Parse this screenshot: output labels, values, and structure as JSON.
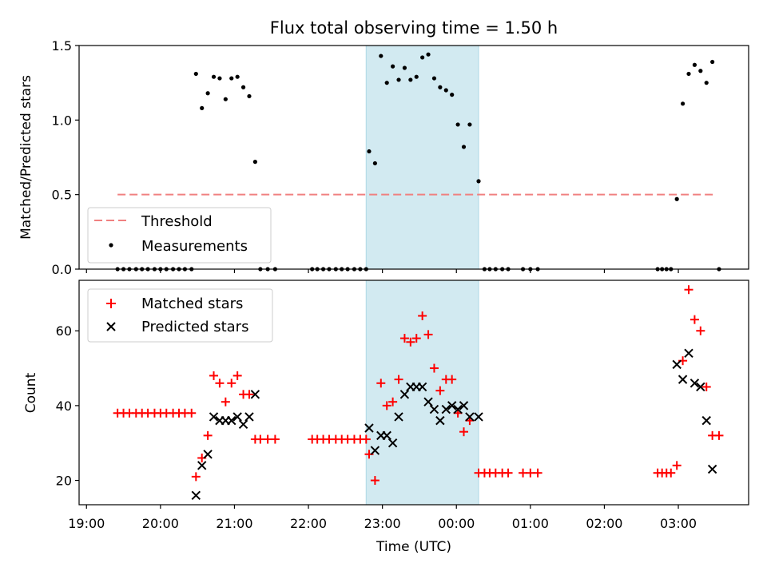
{
  "chart_data": [
    {
      "type": "scatter",
      "title": "Flux total observing time = 1.50 h",
      "ylabel": "Matched/Predicted stars",
      "xlabel": "",
      "ylim": [
        0,
        1.5
      ],
      "yticks": [
        "0.0",
        "0.5",
        "1.0",
        "1.5"
      ],
      "xlim_hours": [
        18.9,
        27.95
      ],
      "highlight_span_hours": [
        22.78,
        24.3
      ],
      "threshold": {
        "name": "Threshold",
        "value": 0.5,
        "x_range_hours": [
          19.42,
          27.5
        ],
        "color": "#f08080"
      },
      "legend_position": "lower-left",
      "series": [
        {
          "name": "Measurements",
          "color": "#000000",
          "points": [
            [
              19.42,
              0
            ],
            [
              19.5,
              0
            ],
            [
              19.58,
              0
            ],
            [
              19.67,
              0
            ],
            [
              19.75,
              0
            ],
            [
              19.83,
              0
            ],
            [
              19.92,
              0
            ],
            [
              20.0,
              0
            ],
            [
              20.08,
              0
            ],
            [
              20.17,
              0
            ],
            [
              20.25,
              0
            ],
            [
              20.33,
              0
            ],
            [
              20.42,
              0
            ],
            [
              20.48,
              1.31
            ],
            [
              20.56,
              1.08
            ],
            [
              20.64,
              1.18
            ],
            [
              20.72,
              1.29
            ],
            [
              20.8,
              1.28
            ],
            [
              20.88,
              1.14
            ],
            [
              20.96,
              1.28
            ],
            [
              21.04,
              1.29
            ],
            [
              21.12,
              1.22
            ],
            [
              21.2,
              1.16
            ],
            [
              21.28,
              0.72
            ],
            [
              21.35,
              0
            ],
            [
              21.45,
              0
            ],
            [
              21.55,
              0
            ],
            [
              22.05,
              0
            ],
            [
              22.12,
              0
            ],
            [
              22.2,
              0
            ],
            [
              22.28,
              0
            ],
            [
              22.37,
              0
            ],
            [
              22.45,
              0
            ],
            [
              22.53,
              0
            ],
            [
              22.62,
              0
            ],
            [
              22.7,
              0
            ],
            [
              22.78,
              0
            ],
            [
              22.82,
              0.79
            ],
            [
              22.9,
              0.71
            ],
            [
              22.98,
              1.43
            ],
            [
              23.06,
              1.25
            ],
            [
              23.14,
              1.36
            ],
            [
              23.22,
              1.27
            ],
            [
              23.3,
              1.35
            ],
            [
              23.38,
              1.27
            ],
            [
              23.46,
              1.29
            ],
            [
              23.54,
              1.42
            ],
            [
              23.62,
              1.44
            ],
            [
              23.7,
              1.28
            ],
            [
              23.78,
              1.22
            ],
            [
              23.86,
              1.2
            ],
            [
              23.94,
              1.17
            ],
            [
              24.02,
              0.97
            ],
            [
              24.1,
              0.82
            ],
            [
              24.18,
              0.97
            ],
            [
              24.3,
              0.59
            ],
            [
              24.38,
              0
            ],
            [
              24.45,
              0
            ],
            [
              24.53,
              0
            ],
            [
              24.62,
              0
            ],
            [
              24.7,
              0
            ],
            [
              24.9,
              0
            ],
            [
              25.0,
              0
            ],
            [
              25.1,
              0
            ],
            [
              26.72,
              0
            ],
            [
              26.78,
              0
            ],
            [
              26.84,
              0
            ],
            [
              26.9,
              0
            ],
            [
              26.98,
              0.47
            ],
            [
              27.06,
              1.11
            ],
            [
              27.14,
              1.31
            ],
            [
              27.22,
              1.37
            ],
            [
              27.3,
              1.33
            ],
            [
              27.38,
              1.25
            ],
            [
              27.46,
              1.39
            ],
            [
              27.55,
              0
            ]
          ]
        }
      ]
    },
    {
      "type": "scatter",
      "title": "",
      "ylabel": "Count",
      "xlabel": "Time (UTC)",
      "ylim": [
        13.5,
        73.5
      ],
      "yticks": [
        "20",
        "40",
        "60"
      ],
      "xlim_hours": [
        18.9,
        27.95
      ],
      "xticks": [
        "19:00",
        "20:00",
        "21:00",
        "22:00",
        "23:00",
        "00:00",
        "01:00",
        "02:00",
        "03:00"
      ],
      "xtick_hours": [
        19,
        20,
        21,
        22,
        23,
        24,
        25,
        26,
        27
      ],
      "highlight_span_hours": [
        22.78,
        24.3
      ],
      "legend_position": "upper-left",
      "series": [
        {
          "name": "Matched stars",
          "color": "#ff0000",
          "marker": "plus",
          "points": [
            [
              19.42,
              38
            ],
            [
              19.5,
              38
            ],
            [
              19.58,
              38
            ],
            [
              19.67,
              38
            ],
            [
              19.75,
              38
            ],
            [
              19.83,
              38
            ],
            [
              19.92,
              38
            ],
            [
              20.0,
              38
            ],
            [
              20.08,
              38
            ],
            [
              20.17,
              38
            ],
            [
              20.25,
              38
            ],
            [
              20.33,
              38
            ],
            [
              20.42,
              38
            ],
            [
              20.48,
              21
            ],
            [
              20.56,
              26
            ],
            [
              20.64,
              32
            ],
            [
              20.72,
              48
            ],
            [
              20.8,
              46
            ],
            [
              20.88,
              41
            ],
            [
              20.96,
              46
            ],
            [
              21.04,
              48
            ],
            [
              21.12,
              43
            ],
            [
              21.2,
              43
            ],
            [
              21.28,
              31
            ],
            [
              21.35,
              31
            ],
            [
              21.45,
              31
            ],
            [
              21.55,
              31
            ],
            [
              22.05,
              31
            ],
            [
              22.12,
              31
            ],
            [
              22.2,
              31
            ],
            [
              22.28,
              31
            ],
            [
              22.37,
              31
            ],
            [
              22.45,
              31
            ],
            [
              22.53,
              31
            ],
            [
              22.62,
              31
            ],
            [
              22.7,
              31
            ],
            [
              22.78,
              31
            ],
            [
              22.82,
              27
            ],
            [
              22.9,
              20
            ],
            [
              22.98,
              46
            ],
            [
              23.06,
              40
            ],
            [
              23.14,
              41
            ],
            [
              23.22,
              47
            ],
            [
              23.3,
              58
            ],
            [
              23.38,
              57
            ],
            [
              23.46,
              58
            ],
            [
              23.54,
              64
            ],
            [
              23.62,
              59
            ],
            [
              23.7,
              50
            ],
            [
              23.78,
              44
            ],
            [
              23.86,
              47
            ],
            [
              23.94,
              47
            ],
            [
              24.02,
              38
            ],
            [
              24.1,
              33
            ],
            [
              24.18,
              36
            ],
            [
              24.3,
              22
            ],
            [
              24.38,
              22
            ],
            [
              24.45,
              22
            ],
            [
              24.53,
              22
            ],
            [
              24.62,
              22
            ],
            [
              24.7,
              22
            ],
            [
              24.9,
              22
            ],
            [
              25.0,
              22
            ],
            [
              25.1,
              22
            ],
            [
              26.72,
              22
            ],
            [
              26.78,
              22
            ],
            [
              26.84,
              22
            ],
            [
              26.9,
              22
            ],
            [
              26.98,
              24
            ],
            [
              27.06,
              52
            ],
            [
              27.14,
              71
            ],
            [
              27.22,
              63
            ],
            [
              27.3,
              60
            ],
            [
              27.38,
              45
            ],
            [
              27.46,
              32
            ],
            [
              27.55,
              32
            ]
          ]
        },
        {
          "name": "Predicted stars",
          "color": "#000000",
          "marker": "x",
          "points": [
            [
              20.48,
              16
            ],
            [
              20.56,
              24
            ],
            [
              20.64,
              27
            ],
            [
              20.72,
              37
            ],
            [
              20.8,
              36
            ],
            [
              20.88,
              36
            ],
            [
              20.96,
              36
            ],
            [
              21.04,
              37
            ],
            [
              21.12,
              35
            ],
            [
              21.2,
              37
            ],
            [
              21.28,
              43
            ],
            [
              22.82,
              34
            ],
            [
              22.9,
              28
            ],
            [
              22.98,
              32
            ],
            [
              23.06,
              32
            ],
            [
              23.14,
              30
            ],
            [
              23.22,
              37
            ],
            [
              23.3,
              43
            ],
            [
              23.38,
              45
            ],
            [
              23.46,
              45
            ],
            [
              23.54,
              45
            ],
            [
              23.62,
              41
            ],
            [
              23.7,
              39
            ],
            [
              23.78,
              36
            ],
            [
              23.86,
              39
            ],
            [
              23.94,
              40
            ],
            [
              24.02,
              39
            ],
            [
              24.1,
              40
            ],
            [
              24.18,
              37
            ],
            [
              24.3,
              37
            ],
            [
              26.98,
              51
            ],
            [
              27.06,
              47
            ],
            [
              27.14,
              54
            ],
            [
              27.22,
              46
            ],
            [
              27.3,
              45
            ],
            [
              27.38,
              36
            ],
            [
              27.46,
              23
            ]
          ]
        }
      ]
    }
  ]
}
